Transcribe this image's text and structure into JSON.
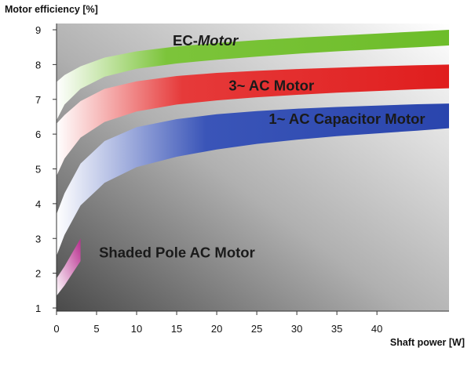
{
  "chart_data": {
    "type": "area",
    "title": "",
    "ylabel": "Motor efficiency [%]",
    "xlabel": "Shaft power [W]",
    "xlim": [
      0,
      49
    ],
    "ylim": [
      1,
      9.3
    ],
    "x_ticks": [
      0,
      5,
      10,
      15,
      20,
      25,
      30,
      35,
      40
    ],
    "y_ticks": [
      1,
      2,
      3,
      4,
      5,
      6,
      7,
      8,
      9
    ],
    "grid": false,
    "legend": "none",
    "series": [
      {
        "name": "EC-Motor",
        "color": "#6fbf2e",
        "x": [
          0,
          1,
          3,
          6,
          10,
          15,
          20,
          25,
          30,
          35,
          40,
          45,
          49
        ],
        "upper": [
          7.5,
          7.7,
          7.95,
          8.2,
          8.38,
          8.52,
          8.62,
          8.7,
          8.77,
          8.83,
          8.89,
          8.95,
          9.0
        ],
        "lower": [
          6.4,
          6.85,
          7.3,
          7.65,
          7.88,
          8.03,
          8.14,
          8.23,
          8.31,
          8.38,
          8.44,
          8.5,
          8.55
        ]
      },
      {
        "name": "3~ AC Motor",
        "color": "#e32626",
        "x": [
          0,
          1,
          3,
          6,
          10,
          15,
          20,
          25,
          30,
          35,
          40,
          45,
          49
        ],
        "upper": [
          6.3,
          6.55,
          6.95,
          7.3,
          7.52,
          7.67,
          7.76,
          7.82,
          7.87,
          7.91,
          7.95,
          7.98,
          8.0
        ],
        "lower": [
          4.8,
          5.3,
          5.9,
          6.35,
          6.65,
          6.85,
          6.97,
          7.06,
          7.13,
          7.19,
          7.24,
          7.29,
          7.32
        ]
      },
      {
        "name": "1~ AC Capacitor Motor",
        "color": "#2e4bb3",
        "x": [
          0,
          1,
          3,
          6,
          10,
          15,
          20,
          25,
          30,
          35,
          40,
          45,
          49
        ],
        "upper": [
          3.7,
          4.3,
          5.15,
          5.8,
          6.2,
          6.43,
          6.57,
          6.66,
          6.73,
          6.78,
          6.82,
          6.86,
          6.88
        ],
        "lower": [
          2.5,
          3.1,
          3.95,
          4.6,
          5.05,
          5.35,
          5.56,
          5.72,
          5.84,
          5.94,
          6.02,
          6.1,
          6.17
        ]
      },
      {
        "name": "Shaded Pole AC Motor",
        "color": "#c23a9a",
        "x": [
          0,
          1,
          2,
          3
        ],
        "upper": [
          1.85,
          2.2,
          2.6,
          3.0
        ],
        "lower": [
          1.35,
          1.65,
          2.0,
          2.35
        ]
      }
    ],
    "annotations": [
      {
        "text_html": "EC-<i>Motor</i>",
        "plain": "EC-",
        "italic": "Motor",
        "x": 14.5,
        "y": 8.55
      },
      {
        "plain": "3~ AC Motor",
        "x": 21.5,
        "y": 7.25
      },
      {
        "plain": "1~ AC Capacitor Motor",
        "x": 26.5,
        "y": 6.3
      },
      {
        "plain": "Shaded Pole AC Motor",
        "x": 5.3,
        "y": 2.45
      }
    ]
  }
}
